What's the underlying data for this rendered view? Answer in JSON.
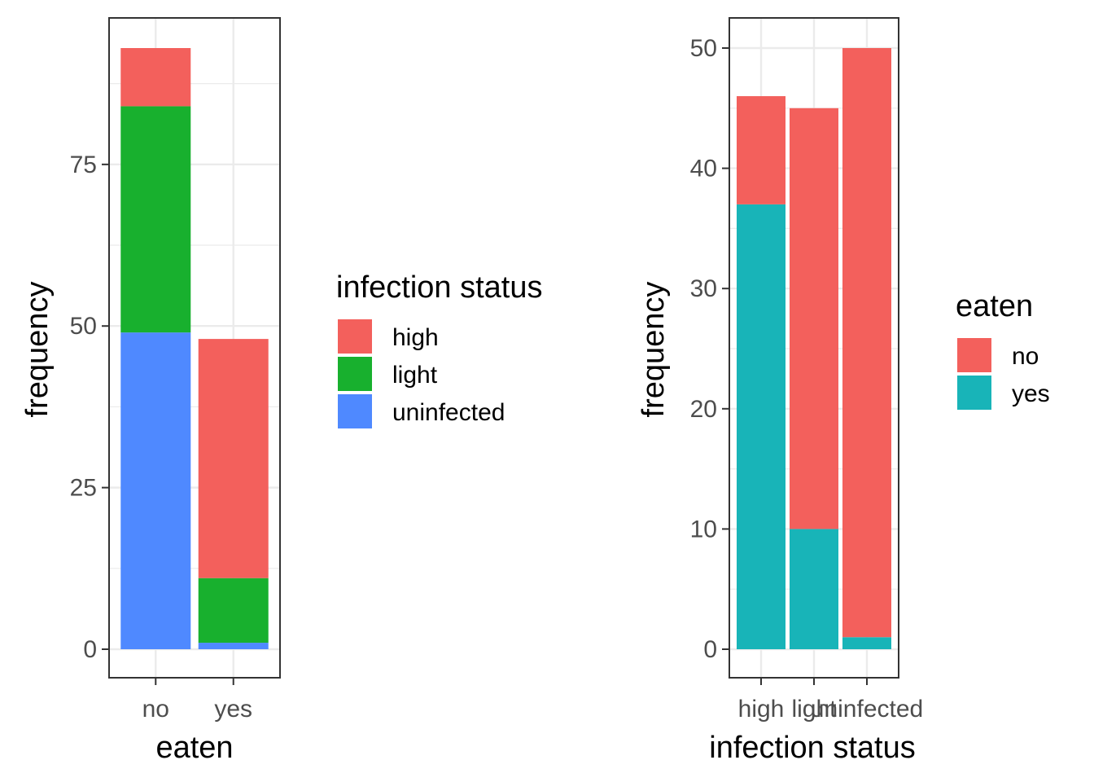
{
  "chart_data": [
    {
      "type": "bar",
      "stacked": true,
      "xlabel": "eaten",
      "ylabel": "frequency",
      "categories": [
        "no",
        "yes"
      ],
      "ylim": [
        0,
        100
      ],
      "yticks": [
        0,
        25,
        50,
        75
      ],
      "grid": true,
      "legend": {
        "title": "infection status",
        "placement": "right",
        "entries": [
          "high",
          "light",
          "uninfected"
        ]
      },
      "series": [
        {
          "name": "uninfected",
          "color": "#4F89FF",
          "values": [
            49,
            1
          ]
        },
        {
          "name": "light",
          "color": "#18B02E",
          "values": [
            35,
            10
          ]
        },
        {
          "name": "high",
          "color": "#F3605C",
          "values": [
            9,
            37
          ]
        }
      ]
    },
    {
      "type": "bar",
      "stacked": true,
      "xlabel": "infection status",
      "ylabel": "frequency",
      "categories": [
        "high",
        "light",
        "uninfected"
      ],
      "ylim": [
        0,
        52
      ],
      "yticks": [
        0,
        10,
        20,
        30,
        40,
        50
      ],
      "grid": true,
      "legend": {
        "title": "eaten",
        "placement": "right",
        "entries": [
          "no",
          "yes"
        ]
      },
      "series": [
        {
          "name": "yes",
          "color": "#18B4B8",
          "values": [
            37,
            10,
            1
          ]
        },
        {
          "name": "no",
          "color": "#F3605C",
          "values": [
            9,
            35,
            49
          ]
        }
      ]
    }
  ]
}
